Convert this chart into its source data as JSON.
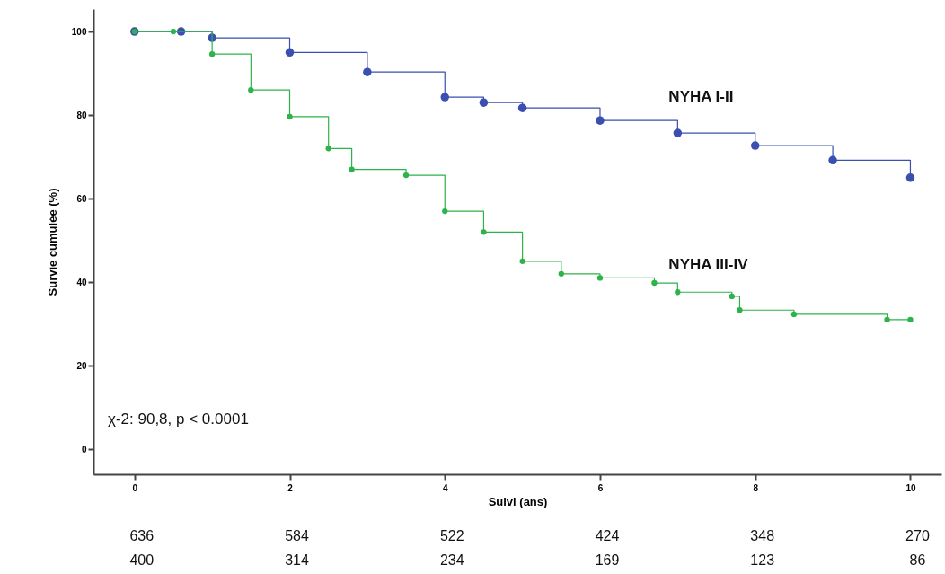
{
  "chart_data": {
    "type": "step",
    "xlabel": "Suivi (ans)",
    "ylabel": "Survie cumulée (%)",
    "xlim": [
      -0.53,
      10.4
    ],
    "ylim": [
      -6,
      105.4
    ],
    "xticks": [
      0,
      2,
      4,
      6,
      8,
      10
    ],
    "yticks": [
      0,
      20,
      40,
      60,
      80,
      100
    ],
    "grid": false,
    "legend": false,
    "marker": "circle",
    "line_style": "solid",
    "series": [
      {
        "name": "NYHA I-II",
        "color": "#3a4fb0",
        "x": [
          0,
          0.6,
          1,
          2,
          3,
          4,
          4.5,
          5,
          6,
          7,
          8,
          9,
          10
        ],
        "values": [
          100,
          100,
          98.5,
          95,
          90.3,
          84.3,
          83,
          81.7,
          78.7,
          75.7,
          72.7,
          69.2,
          65
        ]
      },
      {
        "name": "NYHA III-IV",
        "color": "#2db34a",
        "x": [
          0,
          0.5,
          1,
          1.5,
          2,
          2.5,
          2.8,
          3.5,
          4,
          4.5,
          5,
          5.5,
          6,
          6.7,
          7,
          7.7,
          7.8,
          8.5,
          9.7,
          10
        ],
        "values": [
          100,
          100,
          94.6,
          86,
          79.6,
          72,
          67,
          65.6,
          57,
          52,
          45,
          42,
          41,
          39.8,
          37.6,
          36.6,
          33.3,
          32.3,
          31,
          31
        ]
      }
    ],
    "annotations": [
      "χ-2: 90,8, p < 0.0001",
      "636",
      "584",
      "522",
      "424",
      "348",
      "270",
      "400",
      "314",
      "234",
      "169",
      "123",
      "86"
    ]
  }
}
